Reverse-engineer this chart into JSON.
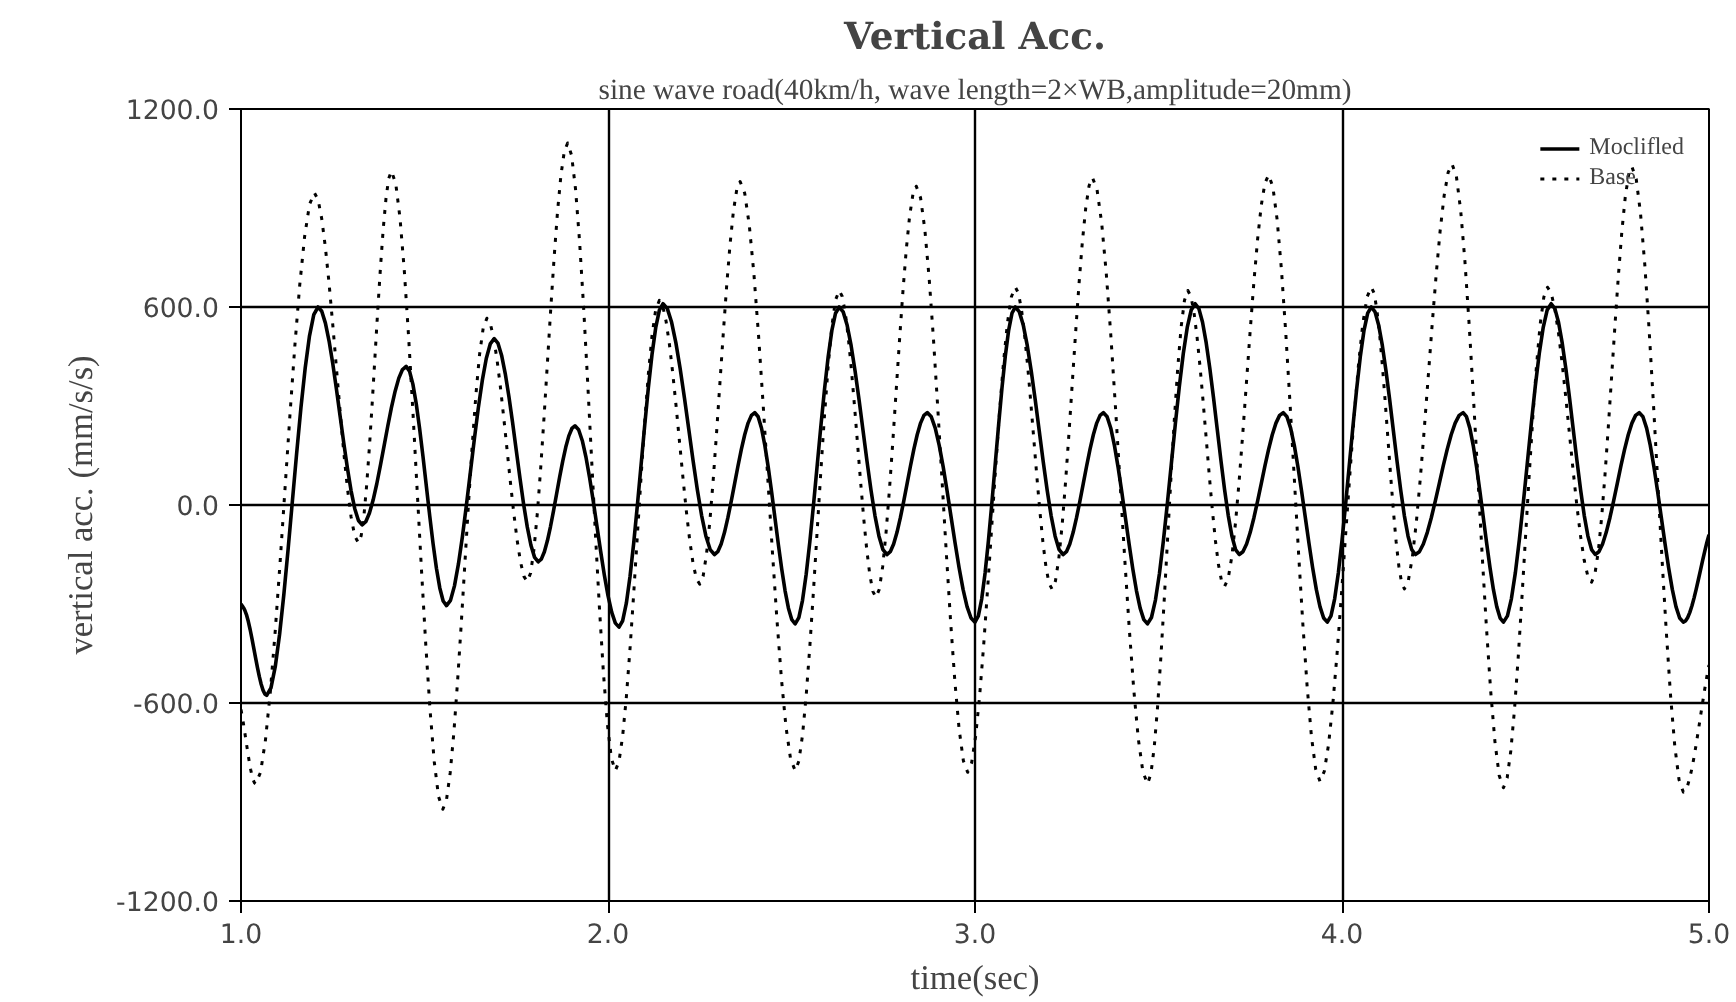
{
  "chart_data": {
    "type": "line",
    "title": "Vertical Acc.",
    "subtitle": "sine wave road(40km/h, wave length=2×WB,amplitude=20mm)",
    "xlabel": "time(sec)",
    "ylabel": "vertical acc. (mm/s/s)",
    "xlim": [
      1.0,
      5.0
    ],
    "ylim": [
      -1200,
      1200
    ],
    "xticks": [
      {
        "value": 1,
        "label": "1.0"
      },
      {
        "value": 2,
        "label": "2.0"
      },
      {
        "value": 3,
        "label": "3.0"
      },
      {
        "value": 4,
        "label": "4.0"
      },
      {
        "value": 5,
        "label": "5.0"
      }
    ],
    "yticks": [
      {
        "value": -1200,
        "label": "-1200.0"
      },
      {
        "value": -600,
        "label": "-600.0"
      },
      {
        "value": 0,
        "label": "0.0"
      },
      {
        "value": 600,
        "label": "600.0"
      },
      {
        "value": 1200,
        "label": "1200.0"
      }
    ],
    "grid": true,
    "legend": "top right",
    "series": [
      {
        "name": "Moclifled",
        "color": "#000000",
        "line_style": "solid",
        "x": [
          1.0,
          1.01,
          1.07,
          1.21,
          1.33,
          1.45,
          1.56,
          1.69,
          1.81,
          1.91,
          2.03,
          2.15,
          2.29,
          2.4,
          2.51,
          2.63,
          2.76,
          2.87,
          3.0,
          3.11,
          3.24,
          3.35,
          3.47,
          3.6,
          3.72,
          3.84,
          3.96,
          4.08,
          4.2,
          4.33,
          4.44,
          4.57,
          4.69,
          4.81,
          4.93,
          5.0
        ],
        "values": [
          -300,
          -318,
          -577,
          600,
          -60,
          420,
          -305,
          504,
          -172,
          240,
          -370,
          610,
          -150,
          280,
          -360,
          600,
          -150,
          280,
          -355,
          600,
          -150,
          280,
          -360,
          610,
          -150,
          280,
          -355,
          600,
          -150,
          280,
          -355,
          610,
          -150,
          280,
          -355,
          -90
        ]
      },
      {
        "name": "Base",
        "color": "#000000",
        "line_style": "dotted",
        "x": [
          1.0,
          1.04,
          1.2,
          1.32,
          1.41,
          1.55,
          1.67,
          1.78,
          1.89,
          2.02,
          2.14,
          2.25,
          2.36,
          2.51,
          2.63,
          2.73,
          2.84,
          2.98,
          3.11,
          3.21,
          3.32,
          3.47,
          3.58,
          3.68,
          3.8,
          3.94,
          4.08,
          4.17,
          4.3,
          4.44,
          4.56,
          4.68,
          4.79,
          4.93,
          5.0
        ],
        "values": [
          -620,
          -845,
          946,
          -115,
          1012,
          -922,
          566,
          -232,
          1097,
          -805,
          620,
          -240,
          980,
          -805,
          650,
          -280,
          966,
          -810,
          660,
          -255,
          992,
          -845,
          650,
          -247,
          1000,
          -837,
          660,
          -254,
          1033,
          -857,
          660,
          -234,
          1025,
          -870,
          -485
        ]
      }
    ]
  }
}
